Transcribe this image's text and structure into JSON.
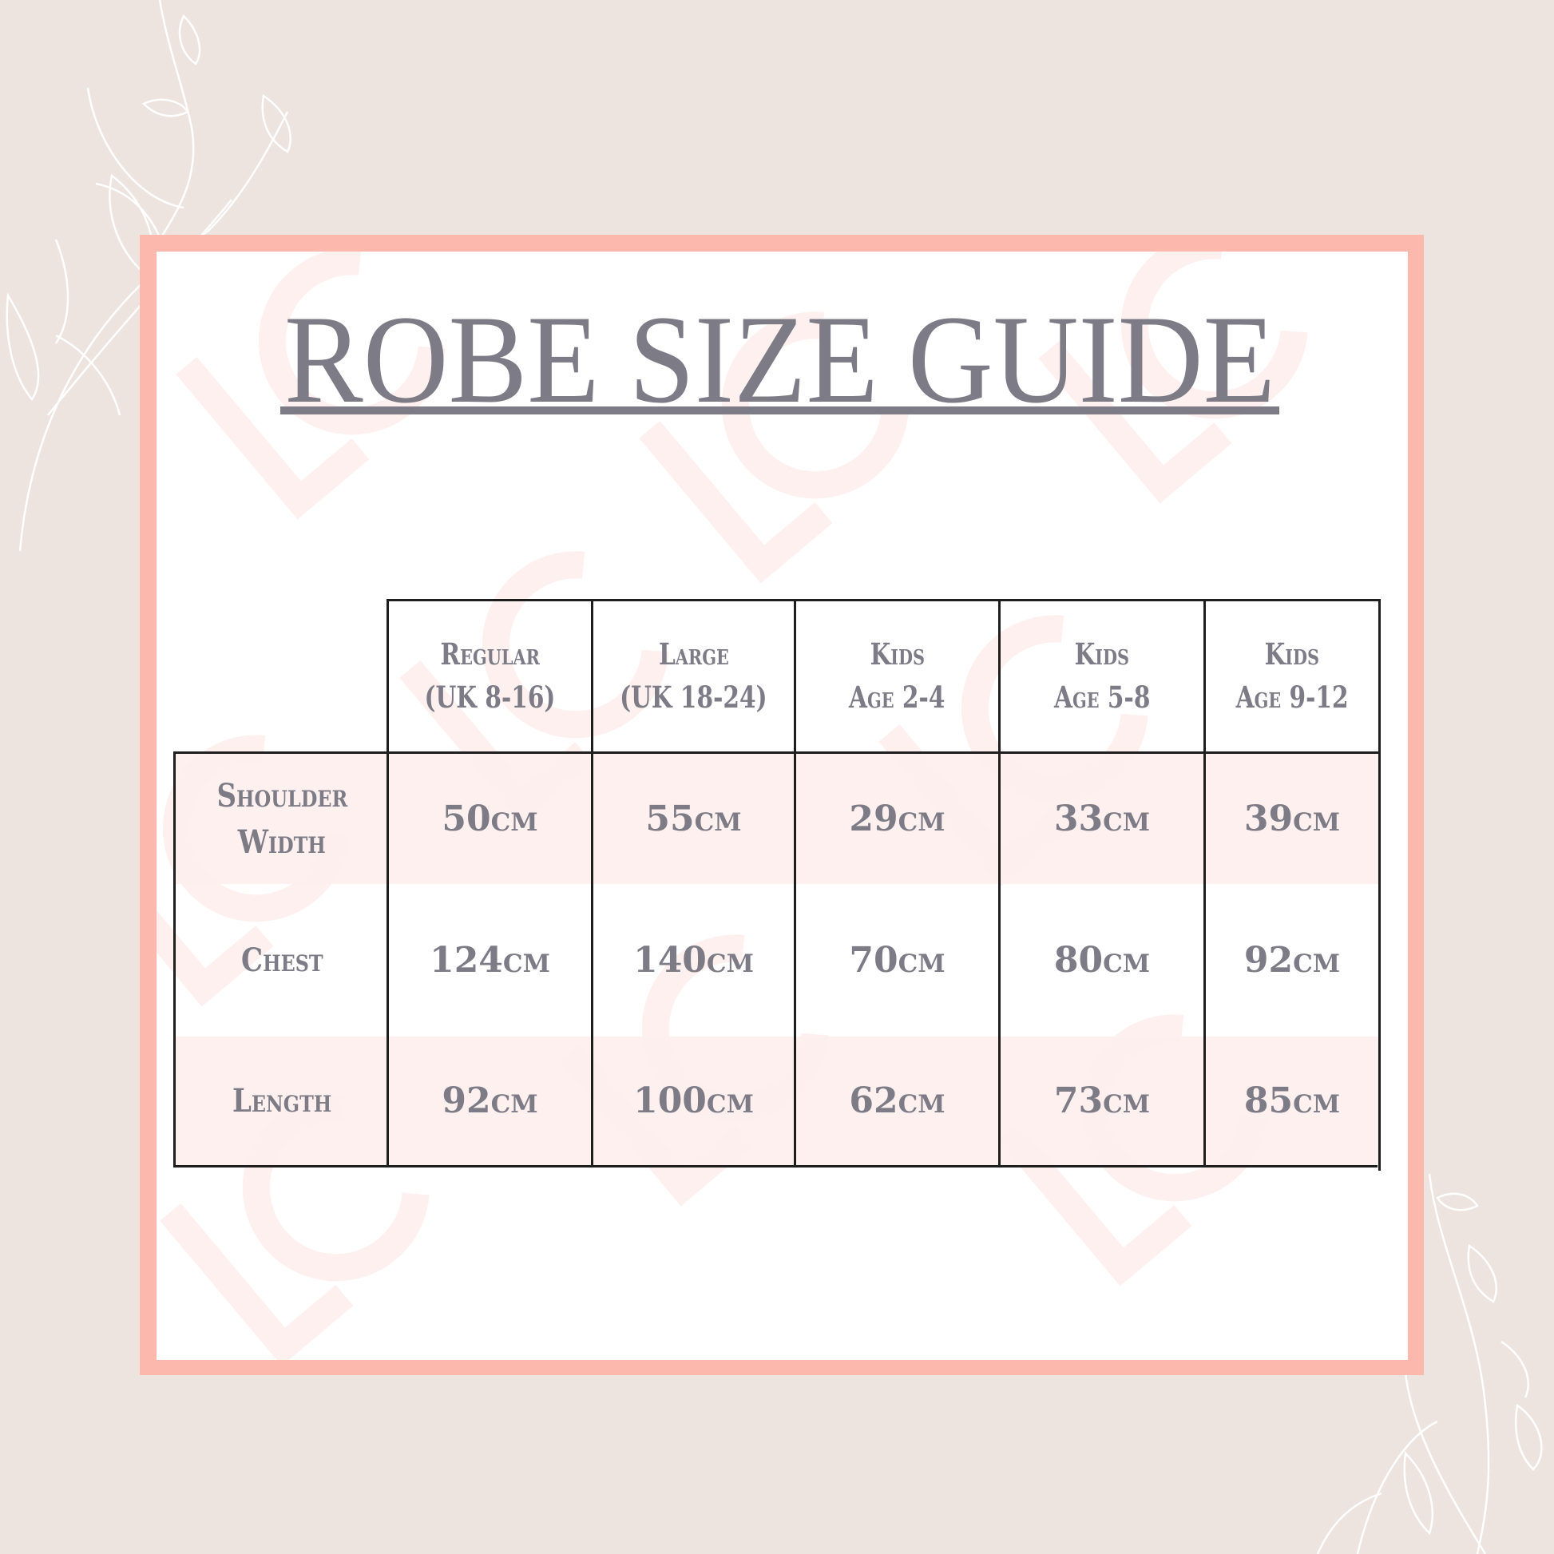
{
  "title": "ROBE SIZE GUIDE",
  "colors": {
    "background": "#ede3df",
    "frame": "#fdb8ae",
    "text": "#7d7b86",
    "row_shade": "#fdeeed"
  },
  "watermark": "LC",
  "table": {
    "columns": [
      {
        "line1": "Regular",
        "line2": "(UK 8-16)"
      },
      {
        "line1": "Large",
        "line2": "(UK 18-24)"
      },
      {
        "line1": "Kids",
        "line2": "Age 2-4"
      },
      {
        "line1": "Kids",
        "line2": "Age 5-8"
      },
      {
        "line1": "Kids",
        "line2": "Age 9-12"
      }
    ],
    "rows": [
      {
        "label1": "Shoulder",
        "label2": "Width",
        "values": [
          "50CM",
          "55CM",
          "29CM",
          "33CM",
          "39CM"
        ]
      },
      {
        "label1": "Chest",
        "label2": "",
        "values": [
          "124CM",
          "140CM",
          "70CM",
          "80CM",
          "92CM"
        ]
      },
      {
        "label1": "Length",
        "label2": "",
        "values": [
          "92CM",
          "100CM",
          "62CM",
          "73CM",
          "85CM"
        ]
      }
    ]
  }
}
